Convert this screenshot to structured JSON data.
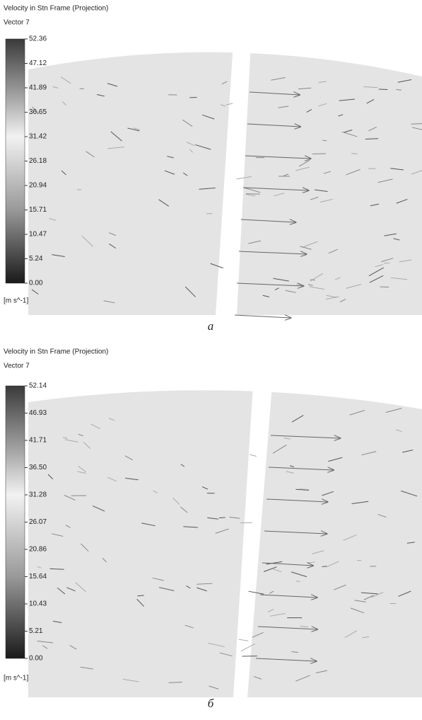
{
  "panels": [
    {
      "title": "Velocity in Stn Frame (Projection)",
      "subtitle": "Vector 7",
      "legend_ticks": [
        "52.36",
        "47.12",
        "41.89",
        "36.65",
        "31.42",
        "26.18",
        "20.94",
        "15.71",
        "10.47",
        "5.24",
        "0.00"
      ],
      "unit": "[m s^-1]",
      "caption": "a"
    },
    {
      "title": "Velocity in Stn Frame (Projection)",
      "subtitle": "Vector 7",
      "legend_ticks": [
        "52.14",
        "46.93",
        "41.71",
        "36.50",
        "31.28",
        "26.07",
        "20.86",
        "15.64",
        "10.43",
        "5.21",
        "0.00"
      ],
      "unit": "[m s^-1]",
      "caption": "б"
    }
  ]
}
